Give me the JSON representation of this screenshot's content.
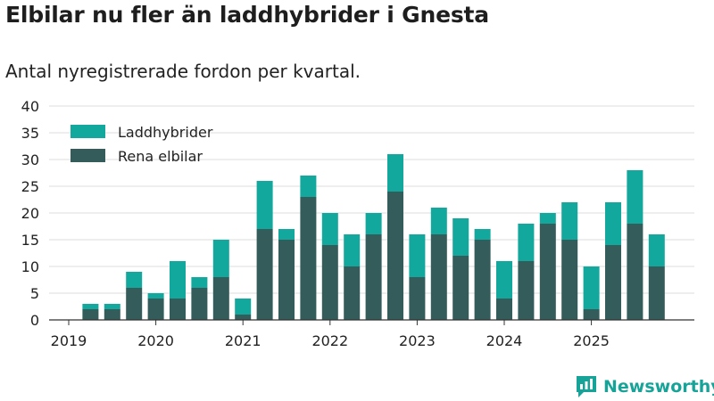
{
  "title": "Elbilar nu fler än laddhybrider i Gnesta",
  "subtitle": "Antal nyregistrerade fordon per kvartal.",
  "brand": {
    "name": "Newsworthy"
  },
  "colors": {
    "laddhybrider": "#12a89d",
    "elbilar": "#335c5a",
    "grid": "#dddddd",
    "axis": "#333333",
    "text": "#222222"
  },
  "chart_data": {
    "type": "bar",
    "stacked": true,
    "title": "Elbilar nu fler än laddhybrider i Gnesta",
    "subtitle": "Antal nyregistrerade fordon per kvartal.",
    "xlabel": "",
    "ylabel": "",
    "ylim": [
      0,
      40
    ],
    "yticks": [
      0,
      5,
      10,
      15,
      20,
      25,
      30,
      35,
      40
    ],
    "grid": true,
    "legend_position": "top-left",
    "x_tick_labels": [
      "2019",
      "2020",
      "2021",
      "2022",
      "2023",
      "2024",
      "2025"
    ],
    "categories": [
      "2019 Q1",
      "2019 Q2",
      "2019 Q3",
      "2019 Q4",
      "2020 Q1",
      "2020 Q2",
      "2020 Q3",
      "2020 Q4",
      "2021 Q1",
      "2021 Q2",
      "2021 Q3",
      "2021 Q4",
      "2022 Q1",
      "2022 Q2",
      "2022 Q3",
      "2022 Q4",
      "2023 Q1",
      "2023 Q2",
      "2023 Q3",
      "2023 Q4",
      "2024 Q1",
      "2024 Q2",
      "2024 Q3",
      "2024 Q4",
      "2025 Q1",
      "2025 Q2",
      "2025 Q3",
      "2025 Q4"
    ],
    "series": [
      {
        "name": "Rena elbilar",
        "color": "#335c5a",
        "values": [
          0,
          2,
          2,
          6,
          4,
          4,
          6,
          8,
          1,
          17,
          15,
          23,
          14,
          10,
          16,
          24,
          8,
          16,
          12,
          15,
          4,
          11,
          18,
          15,
          2,
          14,
          18,
          10
        ]
      },
      {
        "name": "Laddhybrider",
        "color": "#12a89d",
        "values": [
          0,
          1,
          1,
          3,
          1,
          7,
          2,
          7,
          3,
          9,
          2,
          4,
          6,
          6,
          4,
          7,
          8,
          5,
          7,
          2,
          7,
          7,
          2,
          7,
          8,
          8,
          10,
          6
        ]
      }
    ],
    "legend": [
      "Laddhybrider",
      "Rena elbilar"
    ]
  }
}
